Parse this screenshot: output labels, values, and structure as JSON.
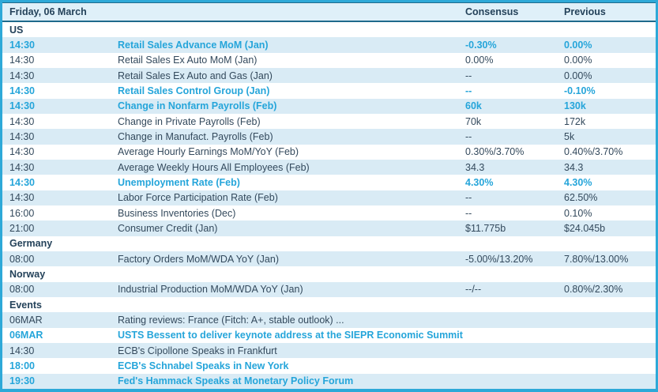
{
  "colors": {
    "accent_cyan": "#25A5DA",
    "dark_text": "#33495C",
    "row_alt_bg": "#D9EBF5",
    "header_bg": "#DFF0F9",
    "outer_border": "#2EA9D8",
    "header_line": "#1F6A8C"
  },
  "header": {
    "date": "Friday, 06 March",
    "consensus": "Consensus",
    "previous": "Previous"
  },
  "rows": [
    {
      "type": "section",
      "label": "US"
    },
    {
      "type": "event",
      "time": "14:30",
      "event": "Retail Sales Advance MoM (Jan)",
      "consensus": "-0.30%",
      "previous": "0.00%",
      "highlight": true
    },
    {
      "type": "event",
      "time": "14:30",
      "event": "Retail Sales Ex Auto MoM (Jan)",
      "consensus": "0.00%",
      "previous": "0.00%",
      "highlight": false
    },
    {
      "type": "event",
      "time": "14:30",
      "event": "Retail Sales Ex Auto and Gas (Jan)",
      "consensus": "--",
      "previous": "0.00%",
      "highlight": false
    },
    {
      "type": "event",
      "time": "14:30",
      "event": "Retail Sales Control Group (Jan)",
      "consensus": "--",
      "previous": "-0.10%",
      "highlight": true
    },
    {
      "type": "event",
      "time": "14:30",
      "event": "Change in Nonfarm Payrolls (Feb)",
      "consensus": "60k",
      "previous": "130k",
      "highlight": true
    },
    {
      "type": "event",
      "time": "14:30",
      "event": "Change in Private Payrolls (Feb)",
      "consensus": "70k",
      "previous": "172k",
      "highlight": false
    },
    {
      "type": "event",
      "time": "14:30",
      "event": "Change in Manufact. Payrolls (Feb)",
      "consensus": "--",
      "previous": "5k",
      "highlight": false
    },
    {
      "type": "event",
      "time": "14:30",
      "event": "Average Hourly Earnings MoM/YoY (Feb)",
      "consensus": "0.30%/3.70%",
      "previous": "0.40%/3.70%",
      "highlight": false
    },
    {
      "type": "event",
      "time": "14:30",
      "event": "Average Weekly Hours All Employees (Feb)",
      "consensus": "34.3",
      "previous": "34.3",
      "highlight": false
    },
    {
      "type": "event",
      "time": "14:30",
      "event": "Unemployment Rate (Feb)",
      "consensus": "4.30%",
      "previous": "4.30%",
      "highlight": true
    },
    {
      "type": "event",
      "time": "14:30",
      "event": "Labor Force Participation Rate (Feb)",
      "consensus": "--",
      "previous": "62.50%",
      "highlight": false
    },
    {
      "type": "event",
      "time": "16:00",
      "event": "Business Inventories (Dec)",
      "consensus": "--",
      "previous": "0.10%",
      "highlight": false
    },
    {
      "type": "event",
      "time": "21:00",
      "event": "Consumer Credit (Jan)",
      "consensus": "$11.775b",
      "previous": "$24.045b",
      "highlight": false
    },
    {
      "type": "section",
      "label": "Germany"
    },
    {
      "type": "event",
      "time": "08:00",
      "event": "Factory Orders MoM/WDA YoY (Jan)",
      "consensus": "-5.00%/13.20%",
      "previous": "7.80%/13.00%",
      "highlight": false
    },
    {
      "type": "section",
      "label": "Norway"
    },
    {
      "type": "event",
      "time": "08:00",
      "event": "Industrial Production MoM/WDA YoY (Jan)",
      "consensus": "--/--",
      "previous": "0.80%/2.30%",
      "highlight": false
    },
    {
      "type": "section",
      "label": "Events"
    },
    {
      "type": "event",
      "time": "06MAR",
      "event": "Rating reviews: France (Fitch: A+, stable outlook) ...",
      "consensus": "",
      "previous": "",
      "highlight": false
    },
    {
      "type": "event",
      "time": "06MAR",
      "event": "USTS  Bessent to deliver keynote address at the SIEPR Economic Summit",
      "consensus": "",
      "previous": "",
      "highlight": true
    },
    {
      "type": "event",
      "time": "14:30",
      "event": "ECB's Cipollone Speaks in Frankfurt",
      "consensus": "",
      "previous": "",
      "highlight": false
    },
    {
      "type": "event",
      "time": "18:00",
      "event": "ECB's Schnabel Speaks in New York",
      "consensus": "",
      "previous": "",
      "highlight": true
    },
    {
      "type": "event",
      "time": "19:30",
      "event": "Fed's Hammack Speaks at Monetary Policy Forum",
      "consensus": "",
      "previous": "",
      "highlight": true
    }
  ]
}
